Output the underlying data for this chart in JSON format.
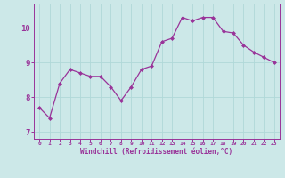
{
  "x": [
    0,
    1,
    2,
    3,
    4,
    5,
    6,
    7,
    8,
    9,
    10,
    11,
    12,
    13,
    14,
    15,
    16,
    17,
    18,
    19,
    20,
    21,
    22,
    23
  ],
  "y": [
    7.7,
    7.4,
    8.4,
    8.8,
    8.7,
    8.6,
    8.6,
    8.3,
    7.9,
    8.3,
    8.8,
    8.9,
    9.6,
    9.7,
    10.3,
    10.2,
    10.3,
    10.3,
    9.9,
    9.85,
    9.5,
    9.3,
    9.15,
    9.0
  ],
  "line_color": "#993399",
  "marker": "D",
  "marker_size": 2.0,
  "bg_color": "#cce8e8",
  "grid_color": "#b0d8d8",
  "xlabel": "Windchill (Refroidissement éolien,°C)",
  "xlabel_color": "#993399",
  "tick_color": "#993399",
  "label_color": "#993399",
  "ylim": [
    6.8,
    10.7
  ],
  "xlim": [
    -0.5,
    23.5
  ],
  "yticks": [
    7,
    8,
    9,
    10
  ],
  "xticks": [
    0,
    1,
    2,
    3,
    4,
    5,
    6,
    7,
    8,
    9,
    10,
    11,
    12,
    13,
    14,
    15,
    16,
    17,
    18,
    19,
    20,
    21,
    22,
    23
  ]
}
